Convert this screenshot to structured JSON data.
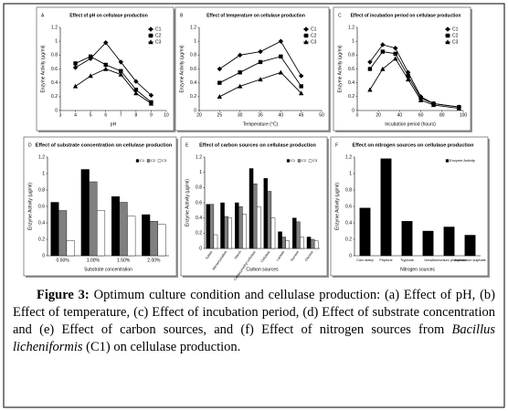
{
  "chart_data": [
    {
      "type": "line",
      "label": "A",
      "title": "Effect of pH on cellulase production",
      "xlabel": "pH",
      "ylabel": "Enzyme Activity (µg/ml)",
      "x": [
        4,
        5,
        6,
        7,
        8,
        9
      ],
      "xlim": [
        3,
        10
      ],
      "xticks": [
        3,
        4,
        5,
        6,
        7,
        8,
        9,
        10
      ],
      "ylim": [
        0,
        1.2
      ],
      "yticks": [
        0,
        0.2,
        0.4,
        0.6,
        0.8,
        1,
        1.2
      ],
      "legend": "top-right",
      "series": [
        {
          "name": "C1",
          "color": "#000000",
          "marker": "diamond",
          "values": [
            0.62,
            0.75,
            0.98,
            0.7,
            0.42,
            0.22
          ]
        },
        {
          "name": "C2",
          "color": "#000000",
          "marker": "square",
          "values": [
            0.68,
            0.78,
            0.66,
            0.57,
            0.3,
            0.12
          ]
        },
        {
          "name": "C3",
          "color": "#000000",
          "marker": "triangle",
          "values": [
            0.35,
            0.5,
            0.6,
            0.52,
            0.25,
            0.1
          ]
        }
      ]
    },
    {
      "type": "line",
      "label": "B",
      "title": "Effect of temperature on cellulase production",
      "xlabel": "Temperature (°C)",
      "ylabel": "Enzyme Activity (µg/ml)",
      "x": [
        25,
        30,
        35,
        40,
        45
      ],
      "xlim": [
        20,
        50
      ],
      "xticks": [
        20,
        25,
        30,
        35,
        40,
        45,
        50
      ],
      "ylim": [
        0,
        1.2
      ],
      "yticks": [
        0,
        0.2,
        0.4,
        0.6,
        0.8,
        1,
        1.2
      ],
      "legend": "top-right",
      "series": [
        {
          "name": "C1",
          "color": "#000000",
          "marker": "diamond",
          "values": [
            0.6,
            0.8,
            0.85,
            1,
            0.5
          ]
        },
        {
          "name": "C2",
          "color": "#000000",
          "marker": "square",
          "values": [
            0.4,
            0.55,
            0.7,
            0.78,
            0.35
          ]
        },
        {
          "name": "C3",
          "color": "#000000",
          "marker": "triangle",
          "values": [
            0.2,
            0.35,
            0.45,
            0.55,
            0.25
          ]
        }
      ]
    },
    {
      "type": "line",
      "label": "C",
      "title": "Effect of incubation period on cellulase production",
      "xlabel": "Incubation period (hours)",
      "ylabel": "Enzyme Activity (µg/ml)",
      "x": [
        12,
        24,
        36,
        48,
        60,
        72,
        96
      ],
      "xlim": [
        0,
        100
      ],
      "xticks": [
        0,
        20,
        40,
        60,
        80,
        100
      ],
      "ylim": [
        0,
        1.2
      ],
      "yticks": [
        0,
        0.2,
        0.4,
        0.6,
        0.8,
        1,
        1.2
      ],
      "legend": "top-right",
      "series": [
        {
          "name": "C1",
          "color": "#000000",
          "marker": "diamond",
          "values": [
            0.7,
            0.95,
            0.9,
            0.55,
            0.2,
            0.1,
            0.05
          ]
        },
        {
          "name": "C2",
          "color": "#000000",
          "marker": "square",
          "values": [
            0.6,
            0.85,
            0.82,
            0.5,
            0.18,
            0.1,
            0.05
          ]
        },
        {
          "name": "C3",
          "color": "#000000",
          "marker": "triangle",
          "values": [
            0.3,
            0.6,
            0.75,
            0.45,
            0.15,
            0.08,
            0.03
          ]
        }
      ]
    },
    {
      "type": "bar",
      "label": "D",
      "title": "Effect of substrate concentration on cellulase production",
      "xlabel": "Substrate concentration",
      "ylabel": "Enzyme Activity (µg/ml)",
      "categories": [
        "0.50%",
        "1.00%",
        "1.50%",
        "2.00%"
      ],
      "ylim": [
        0,
        1.2
      ],
      "yticks": [
        0,
        0.2,
        0.4,
        0.6,
        0.8,
        1,
        1.2
      ],
      "legend": "top-right",
      "series": [
        {
          "name": "C1",
          "color": "#000000",
          "values": [
            0.65,
            1.05,
            0.72,
            0.5
          ]
        },
        {
          "name": "C2",
          "color": "#808080",
          "values": [
            0.55,
            0.9,
            0.65,
            0.42
          ]
        },
        {
          "name": "C3",
          "color": "#ffffff",
          "values": [
            0.18,
            0.55,
            0.48,
            0.38
          ]
        }
      ]
    },
    {
      "type": "bar",
      "label": "E",
      "title": "Effect of carbon sources on cellulase production",
      "xlabel": "Carbon sources",
      "ylabel": "Enzyme Activity (µg/ml)",
      "categories": [
        "Xylose",
        "Microcrystalline",
        "Starch",
        "Carboxymethyl cellulose",
        "Cellulose",
        "Lactose",
        "Sucrose",
        "Glucose"
      ],
      "ylim": [
        0,
        1.2
      ],
      "yticks": [
        0,
        0.2,
        0.4,
        0.6,
        0.8,
        1,
        1.2
      ],
      "legend": "top-right",
      "series": [
        {
          "name": "C1",
          "color": "#000000",
          "values": [
            0.58,
            0.6,
            0.6,
            1.05,
            0.92,
            0.22,
            0.4,
            0.15
          ]
        },
        {
          "name": "C2",
          "color": "#808080",
          "values": [
            0.58,
            0.42,
            0.55,
            0.85,
            0.75,
            0.15,
            0.35,
            0.12
          ]
        },
        {
          "name": "C3",
          "color": "#ffffff",
          "values": [
            0.18,
            0.4,
            0.45,
            0.55,
            0.4,
            0.1,
            0.15,
            0.1
          ]
        }
      ]
    },
    {
      "type": "bar",
      "label": "F",
      "title": "Effect on nitrogen sources on cellulase production",
      "xlabel": "Nitrogen sources",
      "ylabel": "Enzyme Activity (µg/ml)",
      "categories": [
        "Corn steep",
        "Peptone",
        "Tryptone",
        "Urea",
        "Ammonium phosphate",
        "Ammonium sulphate"
      ],
      "ylim": [
        0,
        1.2
      ],
      "yticks": [
        0,
        0.2,
        0.4,
        0.6,
        0.8,
        1,
        1.2
      ],
      "legend": "top-right",
      "series": [
        {
          "name": "Enzyme Activity",
          "color": "#000000",
          "values": [
            0.58,
            1.18,
            0.42,
            0.3,
            0.35,
            0.25
          ]
        }
      ]
    }
  ],
  "caption": {
    "label": "Figure 3:",
    "text": "Optimum culture condition and cellulase production: (a) Effect of pH, (b) Effect of temperature, (c) Effect of incubation period, (d) Effect of substrate concentration and (e) Effect of carbon sources, and (f) Effect of nitrogen sources from",
    "species": "Bacillus licheniformis",
    "text_end": "(C1) on cellulase production."
  }
}
